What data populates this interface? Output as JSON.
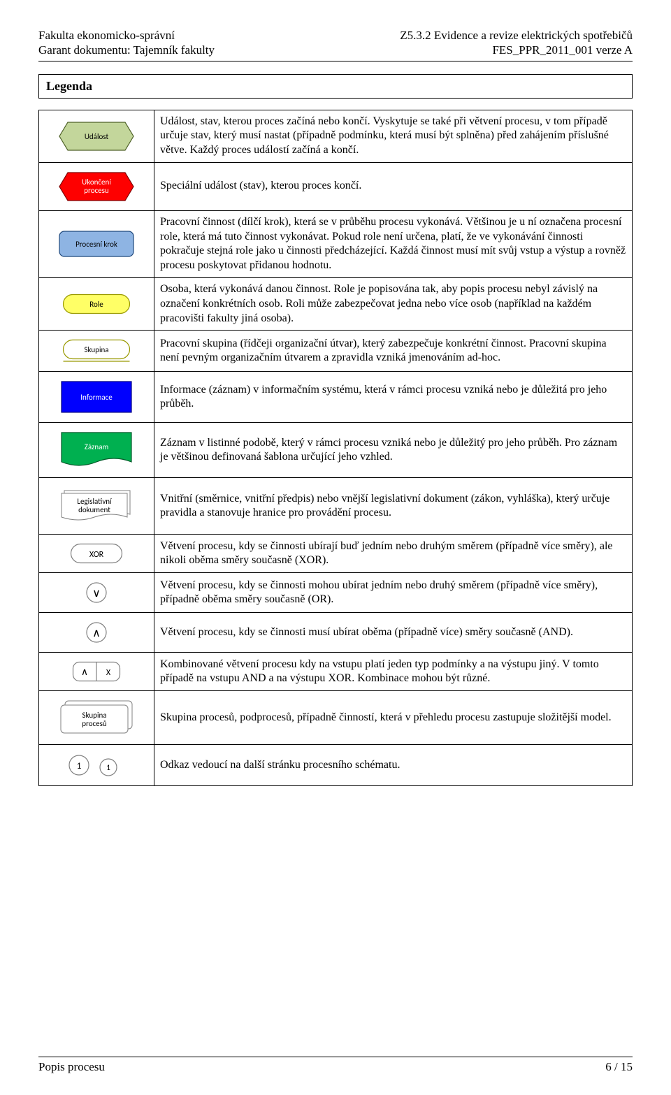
{
  "header": {
    "left_line1": "Fakulta ekonomicko-správní",
    "left_line2": "Garant dokumentu: Tajemník fakulty",
    "right_line1": "Z5.3.2 Evidence a revize elektrických spotřebičů",
    "right_line2": "FES_PPR_2011_001 verze A"
  },
  "legenda_title": "Legenda",
  "footer": {
    "left": "Popis procesu",
    "right": "6 / 15"
  },
  "colors": {
    "event_fill": "#c3d69b",
    "event_stroke": "#4f6228",
    "end_fill": "#fe0000",
    "end_stroke": "#800000",
    "step_fill": "#8eb4e3",
    "step_stroke": "#1f497d",
    "role_fill": "#ffff66",
    "role_stroke": "#999900",
    "group_fill": "#ffffff",
    "group_stroke": "#999900",
    "info_fill": "#0000fe",
    "info_stroke": "#000080",
    "record_fill": "#00b050",
    "record_stroke": "#005828",
    "doc_fill": "#ffffff",
    "doc_stroke": "#808080",
    "gateway_fill": "#ffffff",
    "gateway_stroke": "#808080",
    "link_fill": "#ffffff",
    "link_stroke": "#808080",
    "label_black": "#000000",
    "label_white": "#ffffff"
  },
  "rows": [
    {
      "symbol": "event",
      "label": "Událost",
      "desc": "Událost, stav, kterou proces začíná nebo končí. Vyskytuje se také při větvení procesu, v tom případě určuje stav, který musí nastat (případně podmínku, která musí být splněna) před zahájením příslušné větve. Každý proces událostí začíná a končí."
    },
    {
      "symbol": "end",
      "label": "Ukončení procesu",
      "desc": "Speciální událost (stav), kterou proces končí."
    },
    {
      "symbol": "step",
      "label": "Procesní krok",
      "desc": "Pracovní činnost (dílčí krok), která se v průběhu procesu vykonává. Většinou je u ní označena procesní role, která má tuto činnost vykonávat. Pokud role není určena, platí, že ve vykonávání činnosti pokračuje stejná role jako u činnosti předcházející. Každá činnost musí mít svůj vstup a výstup a rovněž procesu poskytovat přidanou hodnotu."
    },
    {
      "symbol": "role",
      "label": "Role",
      "desc": "Osoba, která vykonává danou činnost. Role je popisována tak, aby popis procesu nebyl závislý na označení konkrétních osob. Roli může zabezpečovat jedna nebo více osob (například na každém pracovišti fakulty jiná osoba)."
    },
    {
      "symbol": "group",
      "label": "Skupina",
      "desc": "Pracovní skupina (řídčeji organizační útvar), který zabezpečuje konkrétní činnost. Pracovní skupina není pevným organizačním útvarem a zpravidla vzniká jmenováním ad-hoc."
    },
    {
      "symbol": "info",
      "label": "Informace",
      "desc": "Informace (záznam) v informačním systému, která v rámci procesu vzniká nebo je důležitá pro jeho průběh."
    },
    {
      "symbol": "record",
      "label": "Záznam",
      "desc": "Záznam v listinné podobě, který v rámci procesu vzniká nebo je důležitý pro jeho průběh. Pro záznam je většinou definovaná šablona určující jeho vzhled."
    },
    {
      "symbol": "doc",
      "label": "Legislativní dokument",
      "desc": "Vnitřní (směrnice, vnitřní předpis) nebo vnější legislativní dokument (zákon, vyhláška), který určuje pravidla a stanovuje hranice pro provádění procesu."
    },
    {
      "symbol": "xor",
      "label": "XOR",
      "desc": "Větvení procesu, kdy se činnosti ubírají buď jedním nebo druhým směrem (případně více směry), ale nikoli oběma směry současně (XOR)."
    },
    {
      "symbol": "or",
      "label": "∨",
      "desc": "Větvení procesu, kdy se činnosti mohou ubírat jedním nebo druhý směrem (případně více směry), případně oběma směry současně (OR)."
    },
    {
      "symbol": "and",
      "label": "∧",
      "desc": "Větvení procesu, kdy se činnosti musí ubírat oběma (případně více) směry současně (AND)."
    },
    {
      "symbol": "combo",
      "label_left": "∧",
      "label_right": "X",
      "desc": "Kombinované větvení procesu kdy na vstupu platí jeden typ podmínky a na výstupu jiný. V tomto případě na vstupu AND a na výstupu XOR. Kombinace mohou být různé."
    },
    {
      "symbol": "procgroup",
      "label": "Skupina procesů",
      "desc": "Skupina procesů, podprocesů, případně činností, která v přehledu procesu zastupuje složitější model."
    },
    {
      "symbol": "link",
      "label": "1",
      "desc": "Odkaz vedoucí na další stránku procesního schématu."
    }
  ]
}
